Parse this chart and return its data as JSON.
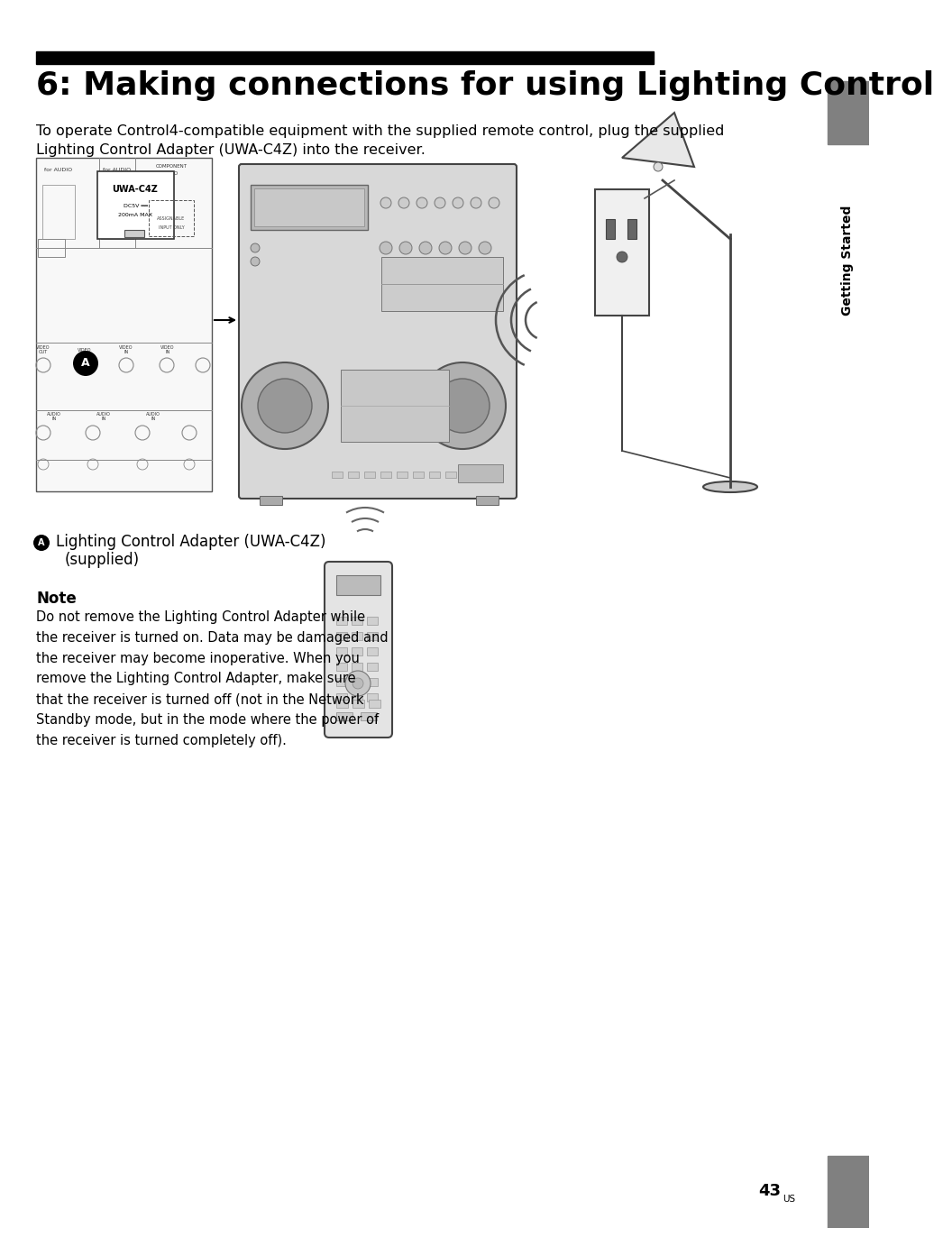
{
  "title": "6: Making connections for using Lighting Control",
  "title_bar_color": "#000000",
  "title_color": "#000000",
  "title_fontsize": 26,
  "bg_color": "#ffffff",
  "page_number": "43",
  "page_number_sup": "US",
  "sidebar_text": "Getting Started",
  "sidebar_bg": "#808080",
  "body_text": "To operate Control4-compatible equipment with the supplied remote control, plug the supplied\nLighting Control Adapter (UWA-C4Z) into the receiver.",
  "body_fontsize": 11.5,
  "caption_fontsize": 12,
  "note_title": "Note",
  "note_fontsize": 10.5,
  "note_title_fontsize": 12,
  "note_body": "Do not remove the Lighting Control Adapter while\nthe receiver is turned on. Data may be damaged and\nthe receiver may become inoperative. When you\nremove the Lighting Control Adapter, make sure\nthat the receiver is turned off (not in the Network\nStandby mode, but in the mode where the power of\nthe receiver is turned completely off)."
}
